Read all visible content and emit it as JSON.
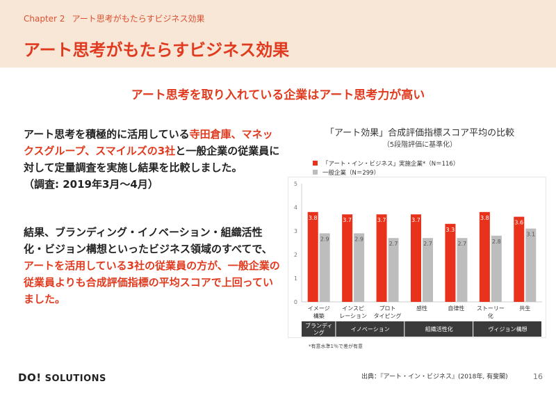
{
  "header": {
    "chapter": "Chapter 2",
    "chapter_title": "アート思考がもたらすビジネス効果",
    "title": "アート思考がもたらすビジネス効果"
  },
  "subtitle": "アート思考を取り入れている企業はアート思考力が高い",
  "para1": {
    "t1": "アート思考を積極的に活用している",
    "t2": "寺田倉庫、マネックスグループ、スマイルズの3社",
    "t3": "と一般企業の従業員に対して定量調査を実施し結果を比較しました。",
    "t4": "（調査: 2019年3月〜4月）"
  },
  "para2": {
    "t1": "結果、ブランディング・イノベーション・組織活性化・ビジョン構想といったビジネス領域のすべてで、",
    "t2": "アートを活用している3社の従業員の方が、一般企業の従業員よりも合成評価指標の平均スコアで上回っていました。"
  },
  "chart_data": {
    "type": "bar",
    "title": "「アート効果」合成評価指標スコア平均の比較",
    "subtitle": "（5段階評価に基準化）",
    "categories": [
      [
        "イメージ",
        "構築"
      ],
      [
        "インスピ",
        "レーション"
      ],
      [
        "プロト",
        "タイピング"
      ],
      [
        "感性"
      ],
      [
        "自律性"
      ],
      [
        "ストーリー",
        "化"
      ],
      [
        "共生"
      ]
    ],
    "series": [
      {
        "name": "「アート・イン・ビジネス」実施企業*（N＝116）",
        "color": "#e8321c",
        "values": [
          3.8,
          3.7,
          3.7,
          3.7,
          3.3,
          3.8,
          3.6
        ]
      },
      {
        "name": "一般企業（N＝299）",
        "color": "#bdbdbd",
        "values": [
          2.9,
          2.9,
          2.7,
          2.7,
          2.7,
          2.8,
          3.1
        ]
      }
    ],
    "ylim": [
      0,
      5
    ],
    "yticks": [
      "0",
      "1",
      "2",
      "3",
      "4",
      "5"
    ],
    "groups": [
      {
        "label": [
          "ブランディ",
          "ング"
        ],
        "span": 1
      },
      {
        "label": [
          "イノベーション"
        ],
        "span": 2
      },
      {
        "label": [
          "組織活性化"
        ],
        "span": 2
      },
      {
        "label": [
          "ヴィジョン構想"
        ],
        "span": 2
      }
    ],
    "footnote": "*有意水準1％で差が有意",
    "grid": false
  },
  "footer": {
    "logo_mark": "DO!",
    "logo_text": "SOLUTIONS",
    "source": "出典：『アート・イン・ビジネス』(2018年, 有斐閣)",
    "page": "16"
  }
}
